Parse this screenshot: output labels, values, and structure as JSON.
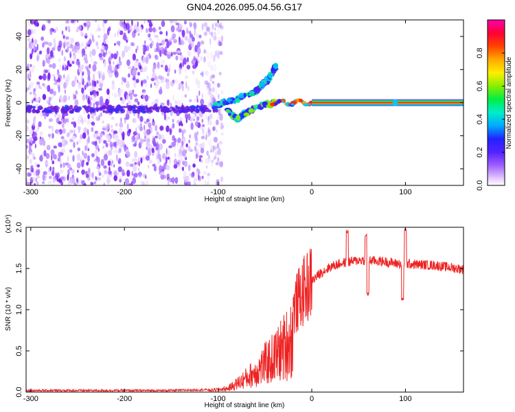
{
  "title": "GN04.2026.095.04.56.G17",
  "colors": {
    "snr_line": "#ee2222",
    "scatter_base": "#7a22ee",
    "carrier_core": "#ee1111",
    "carrier_band": "#22cc22",
    "axis": "#000000"
  },
  "chart_data": [
    {
      "type": "heatmap",
      "name": "spectrogram",
      "xlabel": "Height of straight line (km)",
      "ylabel": "Frequency (Hz)",
      "xlim": [
        -305,
        162
      ],
      "ylim": [
        -50,
        50
      ],
      "xticks": [
        -300,
        -200,
        -100,
        0,
        100
      ],
      "xtick_labels": [
        "-300",
        "-200",
        "-100",
        "0",
        "100"
      ],
      "yticks": [
        -40,
        -20,
        0,
        20,
        40
      ],
      "ytick_labels": [
        "-40",
        "-20",
        "0",
        "20",
        "40"
      ],
      "colorbar": {
        "label": "Normalized spectral amplitude",
        "range": [
          0,
          1
        ],
        "ticks": [
          0.0,
          0.2,
          0.4,
          0.6,
          0.8
        ],
        "tick_labels": [
          "0.0",
          "0.2",
          "0.4",
          "0.6",
          "0.8"
        ],
        "colormap": [
          "#ffffff",
          "#e8ccff",
          "#9944ff",
          "#2222ff",
          "#00ccff",
          "#00ee66",
          "#88ee00",
          "#ffee00",
          "#ff8800",
          "#ff0000",
          "#ff00aa"
        ]
      },
      "features": {
        "noise_region_x": [
          -305,
          -100
        ],
        "noise_band_frequency": -4,
        "carrier_frequency": 0,
        "carrier_start_x": 0,
        "carrier_end_x": 162,
        "upper_branch": [
          [
            -105,
            -2
          ],
          [
            -80,
            2
          ],
          [
            -60,
            7
          ],
          [
            -45,
            15
          ],
          [
            -38,
            22
          ]
        ],
        "lower_branch": [
          [
            -90,
            -5
          ],
          [
            -80,
            -10
          ],
          [
            -70,
            -6
          ],
          [
            -55,
            -2
          ],
          [
            -40,
            0
          ]
        ]
      }
    },
    {
      "type": "line",
      "name": "snr",
      "xlabel": "Height of straight line (km)",
      "ylabel": "SNR (10 * v/v)",
      "y_scale_label": "(x10⁴)",
      "xlim": [
        -305,
        162
      ],
      "ylim": [
        0,
        2.0
      ],
      "xticks": [
        -300,
        -200,
        -100,
        0,
        100
      ],
      "xtick_labels": [
        "-300",
        "-200",
        "-100",
        "0",
        "100"
      ],
      "yticks": [
        0.0,
        0.5,
        1.0,
        1.5,
        2.0
      ],
      "ytick_labels": [
        "0.0",
        "0.5",
        "1.0",
        "1.5",
        "2.0"
      ],
      "envelope_x": [
        -305,
        -150,
        -110,
        -90,
        -80,
        -70,
        -60,
        -50,
        -40,
        -30,
        -20,
        -10,
        0,
        10,
        20,
        30,
        40,
        50,
        60,
        70,
        80,
        90,
        100,
        110,
        130,
        162
      ],
      "envelope_y": [
        0.02,
        0.02,
        0.03,
        0.06,
        0.15,
        0.25,
        0.36,
        0.5,
        0.62,
        0.8,
        1.0,
        1.2,
        1.35,
        1.45,
        1.52,
        1.56,
        1.58,
        1.6,
        1.6,
        1.59,
        1.58,
        1.56,
        1.56,
        1.55,
        1.54,
        1.49
      ],
      "spikes": [
        [
          38,
          1.97
        ],
        [
          58,
          1.93
        ],
        [
          100,
          2.0
        ],
        [
          97,
          1.15
        ],
        [
          60,
          1.22
        ]
      ]
    }
  ]
}
